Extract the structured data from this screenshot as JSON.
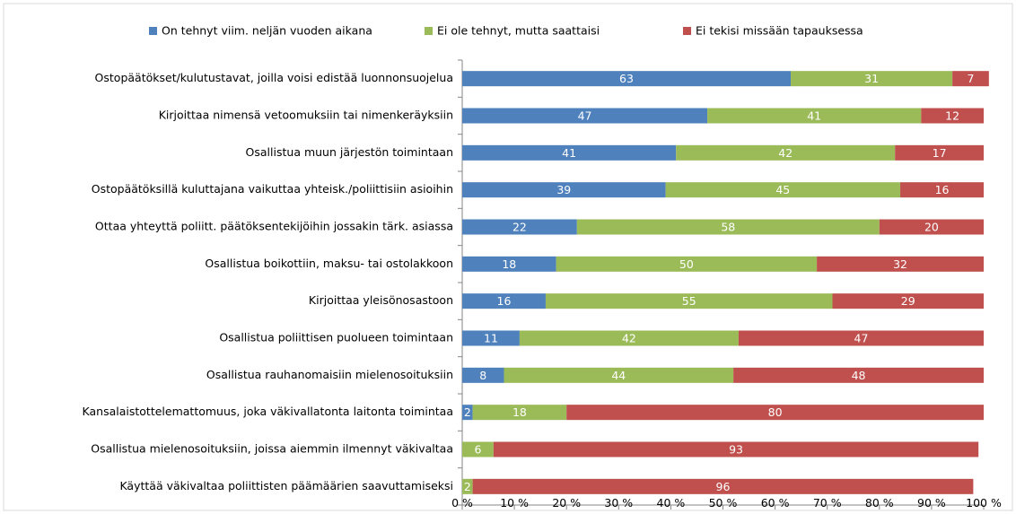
{
  "chart_data": {
    "type": "stacked_bar_horizontal",
    "categories": [
      "Ostopäätökset/kulutustavat, joilla voisi edistää luonnonsuojelua",
      "Kirjoittaa nimensä vetoomuksiin tai nimenkeräyksiin",
      "Osallistua muun järjestön toimintaan",
      "Ostopäätöksillä kuluttajana vaikuttaa yhteisk./poliittisiin asioihin",
      "Ottaa yhteyttä poliitt. päätöksentekijöihin jossakin tärk. asiassa",
      "Osallistua boikottiin, maksu- tai ostolakkoon",
      "Kirjoittaa yleisönosastoon",
      "Osallistua poliittisen puolueen toimintaan",
      "Osallistua rauhanomaisiin mielenosoituksiin",
      "Kansalaistottelemattomuus, joka väkivallatonta laitonta toimintaa",
      "Osallistua mielenosoituksiin, joissa aiemmin ilmennyt väkivaltaa",
      "Käyttää väkivaltaa poliittisten päämäärien saavuttamiseksi"
    ],
    "series": [
      {
        "name": "On tehnyt viim. neljän vuoden aikana",
        "color": "#4f81bd",
        "values": [
          63,
          47,
          41,
          39,
          22,
          18,
          16,
          11,
          8,
          2,
          null,
          null
        ]
      },
      {
        "name": "Ei ole tehnyt, mutta saattaisi",
        "color": "#9bbb59",
        "values": [
          31,
          41,
          42,
          45,
          58,
          50,
          55,
          42,
          44,
          18,
          6,
          2
        ]
      },
      {
        "name": "Ei tekisi missään tapauksessa",
        "color": "#c0504d",
        "values": [
          7,
          12,
          17,
          16,
          20,
          32,
          29,
          47,
          48,
          80,
          93,
          96
        ]
      }
    ],
    "xlim": [
      0,
      100
    ],
    "xticks": [
      {
        "value": 0,
        "label": "0 %"
      },
      {
        "value": 10,
        "label": "10 %"
      },
      {
        "value": 20,
        "label": "20 %"
      },
      {
        "value": 30,
        "label": "30 %"
      },
      {
        "value": 40,
        "label": "40 %"
      },
      {
        "value": 50,
        "label": "50 %"
      },
      {
        "value": 60,
        "label": "60 %"
      },
      {
        "value": 70,
        "label": "70 %"
      },
      {
        "value": 80,
        "label": "80 %"
      },
      {
        "value": 90,
        "label": "90 %"
      },
      {
        "value": 100,
        "label": "100 %"
      }
    ],
    "legend": "top"
  }
}
